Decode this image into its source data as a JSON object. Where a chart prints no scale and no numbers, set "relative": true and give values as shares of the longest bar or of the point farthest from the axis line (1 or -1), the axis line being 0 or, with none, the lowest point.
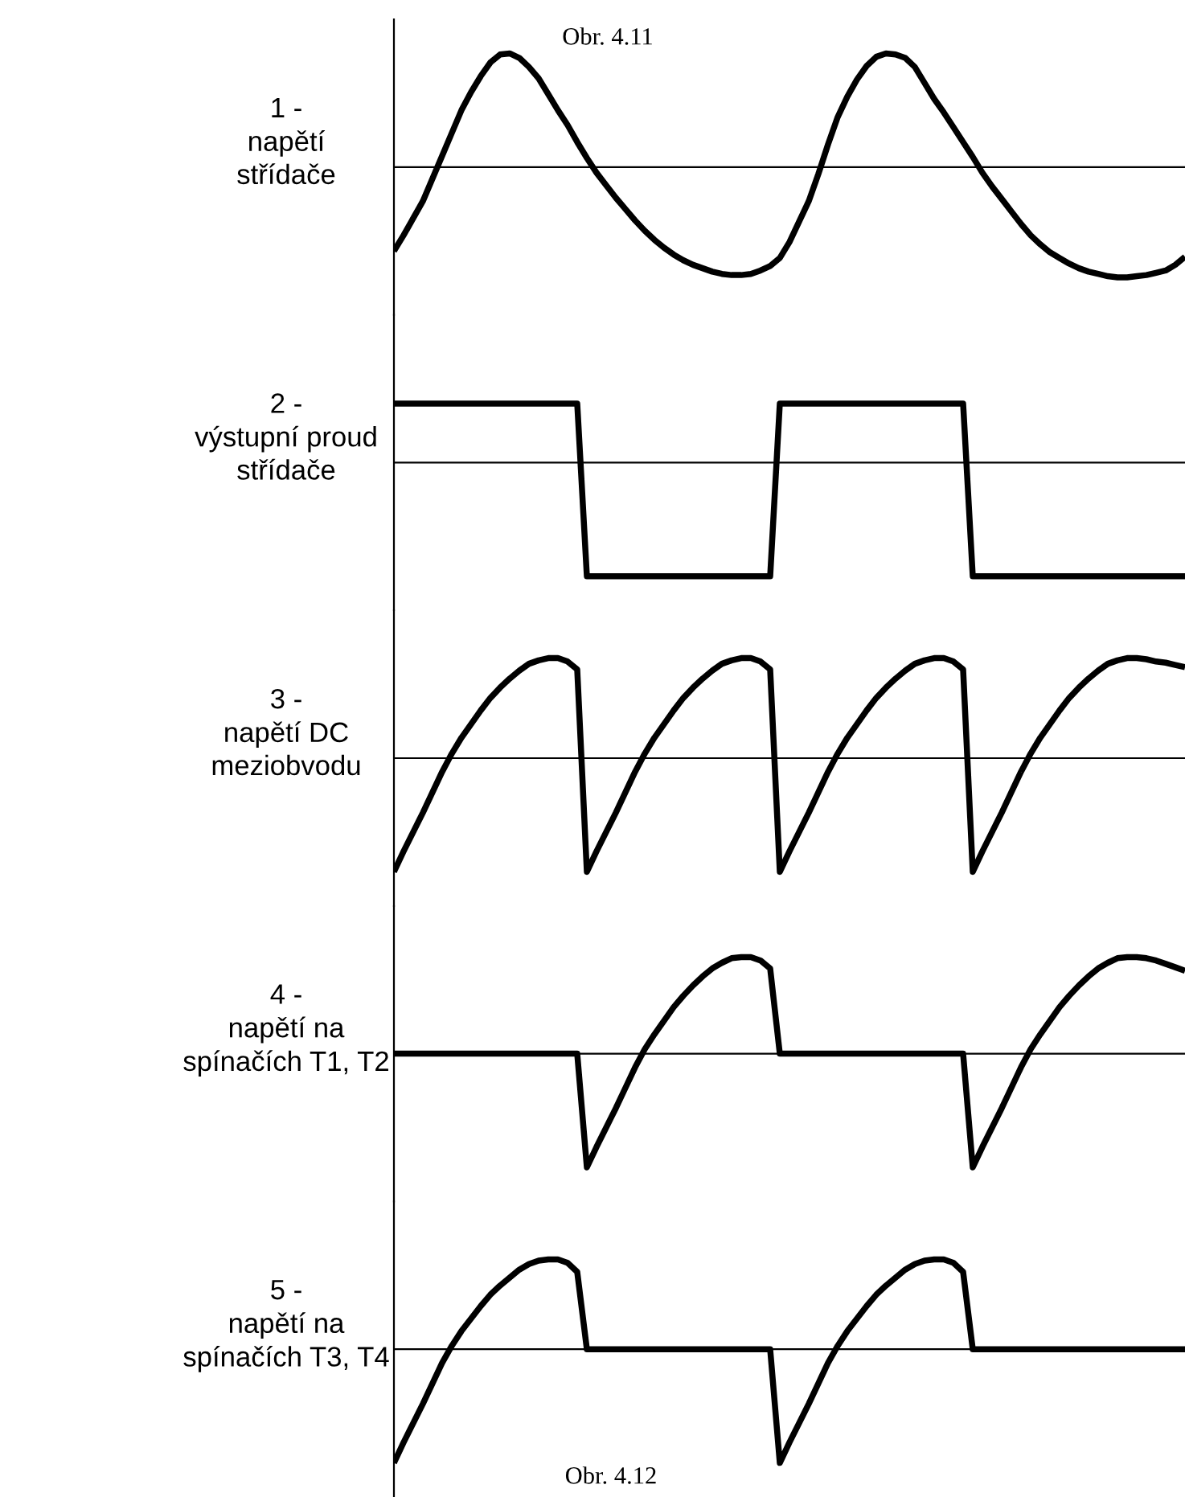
{
  "chart_data": [
    {
      "type": "line",
      "title": "1 -\nnapětí\nstřídače",
      "relative": true,
      "color": "#000000",
      "annotations": [
        "Obr. 4.11"
      ],
      "categories": [
        null,
        null,
        null,
        null,
        null,
        null,
        null,
        null,
        null,
        null,
        null,
        null,
        null,
        null,
        null,
        null,
        null,
        null,
        null,
        null,
        null,
        null,
        null,
        null,
        null,
        null,
        null,
        null,
        null,
        null,
        null,
        null,
        null,
        null,
        null,
        null,
        null,
        null,
        null,
        null,
        null,
        null,
        null,
        null,
        null,
        null,
        null,
        null,
        null,
        null,
        null,
        null,
        null,
        null,
        null,
        null,
        null,
        null,
        null,
        null,
        null,
        null,
        null,
        null,
        null,
        null,
        null,
        null,
        null,
        null,
        null,
        null,
        null,
        null,
        null,
        null,
        null,
        null,
        null,
        null,
        null,
        null,
        null
      ],
      "values": [
        -0.74,
        -0.6,
        -0.45,
        -0.3,
        -0.1,
        0.1,
        0.3,
        0.5,
        0.66,
        0.8,
        0.92,
        0.99,
        1.0,
        0.96,
        0.88,
        0.78,
        0.64,
        0.5,
        0.37,
        0.22,
        0.08,
        -0.05,
        -0.16,
        -0.27,
        -0.37,
        -0.47,
        -0.56,
        -0.64,
        -0.71,
        -0.77,
        -0.82,
        -0.86,
        -0.89,
        -0.92,
        -0.94,
        -0.95,
        -0.95,
        -0.94,
        -0.91,
        -0.87,
        -0.8,
        -0.66,
        -0.48,
        -0.3,
        -0.06,
        0.2,
        0.44,
        0.62,
        0.77,
        0.89,
        0.97,
        1.0,
        0.99,
        0.96,
        0.88,
        0.74,
        0.6,
        0.48,
        0.35,
        0.22,
        0.09,
        -0.05,
        -0.17,
        -0.28,
        -0.39,
        -0.5,
        -0.6,
        -0.68,
        -0.75,
        -0.8,
        -0.85,
        -0.89,
        -0.92,
        -0.94,
        -0.96,
        -0.97,
        -0.97,
        -0.96,
        -0.95,
        -0.93,
        -0.91,
        -0.86,
        -0.79
      ]
    },
    {
      "type": "line",
      "title": "2 -\nvýstupní proud\nstřídače",
      "relative": true,
      "color": "#000000",
      "categories": [
        null,
        null,
        null,
        null,
        null,
        null,
        null,
        null,
        null,
        null,
        null,
        null,
        null,
        null,
        null,
        null,
        null,
        null,
        null,
        null,
        null,
        null,
        null,
        null,
        null,
        null,
        null,
        null,
        null,
        null,
        null,
        null,
        null,
        null,
        null,
        null,
        null,
        null,
        null,
        null,
        null,
        null,
        null,
        null,
        null,
        null,
        null,
        null,
        null,
        null,
        null,
        null,
        null,
        null,
        null,
        null,
        null,
        null,
        null,
        null,
        null,
        null,
        null,
        null,
        null,
        null,
        null,
        null,
        null,
        null,
        null,
        null,
        null,
        null,
        null,
        null,
        null,
        null,
        null,
        null,
        null,
        null,
        null
      ],
      "values": [
        0.52,
        0.52,
        0.52,
        0.52,
        0.52,
        0.52,
        0.52,
        0.52,
        0.52,
        0.52,
        0.52,
        0.52,
        0.52,
        0.52,
        0.52,
        0.52,
        0.52,
        0.52,
        0.52,
        0.52,
        -1,
        -1,
        -1,
        -1,
        -1,
        -1,
        -1,
        -1,
        -1,
        -1,
        -1,
        -1,
        -1,
        -1,
        -1,
        -1,
        -1,
        -1,
        -1,
        -1,
        0.52,
        0.52,
        0.52,
        0.52,
        0.52,
        0.52,
        0.52,
        0.52,
        0.52,
        0.52,
        0.52,
        0.52,
        0.52,
        0.52,
        0.52,
        0.52,
        0.52,
        0.52,
        0.52,
        0.52,
        -1,
        -1,
        -1,
        -1,
        -1,
        -1,
        -1,
        -1,
        -1,
        -1,
        -1,
        -1,
        -1,
        -1,
        -1,
        -1,
        -1,
        -1,
        -1,
        -1,
        -1,
        -1,
        -1
      ]
    },
    {
      "type": "line",
      "title": "3 -\nnapětí DC\nmeziobvodu",
      "relative": true,
      "color": "#000000",
      "categories": [
        null,
        null,
        null,
        null,
        null,
        null,
        null,
        null,
        null,
        null,
        null,
        null,
        null,
        null,
        null,
        null,
        null,
        null,
        null,
        null,
        null,
        null,
        null,
        null,
        null,
        null,
        null,
        null,
        null,
        null,
        null,
        null,
        null,
        null,
        null,
        null,
        null,
        null,
        null,
        null,
        null,
        null,
        null,
        null,
        null,
        null,
        null,
        null,
        null,
        null,
        null,
        null,
        null,
        null,
        null,
        null,
        null,
        null,
        null,
        null,
        null,
        null,
        null,
        null,
        null,
        null,
        null,
        null,
        null,
        null,
        null,
        null,
        null,
        null,
        null,
        null,
        null,
        null,
        null,
        null,
        null,
        null,
        null
      ],
      "values": [
        -1,
        -0.82,
        -0.65,
        -0.48,
        -0.3,
        -0.12,
        0.04,
        0.18,
        0.3,
        0.42,
        0.53,
        0.62,
        0.7,
        0.77,
        0.83,
        0.86,
        0.88,
        0.88,
        0.85,
        0.78,
        -1,
        -0.82,
        -0.65,
        -0.48,
        -0.3,
        -0.12,
        0.04,
        0.18,
        0.3,
        0.42,
        0.53,
        0.62,
        0.7,
        0.77,
        0.83,
        0.86,
        0.88,
        0.88,
        0.85,
        0.78,
        -1,
        -0.82,
        -0.65,
        -0.48,
        -0.3,
        -0.12,
        0.04,
        0.18,
        0.3,
        0.42,
        0.53,
        0.62,
        0.7,
        0.77,
        0.83,
        0.86,
        0.88,
        0.88,
        0.85,
        0.78,
        -1,
        -0.82,
        -0.65,
        -0.48,
        -0.3,
        -0.12,
        0.04,
        0.18,
        0.3,
        0.42,
        0.53,
        0.62,
        0.7,
        0.77,
        0.83,
        0.86,
        0.88,
        0.88,
        0.87,
        0.85,
        0.84,
        0.82,
        0.8
      ]
    },
    {
      "type": "line",
      "title": "4 -\nnapětí na\nspínačích T1, T2",
      "relative": true,
      "color": "#000000",
      "categories": [
        null,
        null,
        null,
        null,
        null,
        null,
        null,
        null,
        null,
        null,
        null,
        null,
        null,
        null,
        null,
        null,
        null,
        null,
        null,
        null,
        null,
        null,
        null,
        null,
        null,
        null,
        null,
        null,
        null,
        null,
        null,
        null,
        null,
        null,
        null,
        null,
        null,
        null,
        null,
        null,
        null,
        null,
        null,
        null,
        null,
        null,
        null,
        null,
        null,
        null,
        null,
        null,
        null,
        null,
        null,
        null,
        null,
        null,
        null,
        null,
        null,
        null,
        null,
        null,
        null,
        null,
        null,
        null,
        null,
        null,
        null,
        null,
        null,
        null,
        null,
        null,
        null,
        null,
        null,
        null,
        null,
        null,
        null
      ],
      "values": [
        0,
        0,
        0,
        0,
        0,
        0,
        0,
        0,
        0,
        0,
        0,
        0,
        0,
        0,
        0,
        0,
        0,
        0,
        0,
        0,
        -1,
        -0.82,
        -0.65,
        -0.48,
        -0.3,
        -0.12,
        0.04,
        0.17,
        0.29,
        0.41,
        0.51,
        0.6,
        0.68,
        0.75,
        0.8,
        0.84,
        0.85,
        0.85,
        0.82,
        0.75,
        0,
        0,
        0,
        0,
        0,
        0,
        0,
        0,
        0,
        0,
        0,
        0,
        0,
        0,
        0,
        0,
        0,
        0,
        0,
        0,
        -1,
        -0.82,
        -0.65,
        -0.48,
        -0.3,
        -0.12,
        0.04,
        0.17,
        0.29,
        0.41,
        0.51,
        0.6,
        0.68,
        0.75,
        0.8,
        0.84,
        0.85,
        0.85,
        0.84,
        0.82,
        0.79,
        0.76,
        0.73
      ]
    },
    {
      "type": "line",
      "title": "5 -\nnapětí na\nspínačích T3, T4",
      "relative": true,
      "color": "#000000",
      "annotations": [
        "Obr. 4.12"
      ],
      "categories": [
        null,
        null,
        null,
        null,
        null,
        null,
        null,
        null,
        null,
        null,
        null,
        null,
        null,
        null,
        null,
        null,
        null,
        null,
        null,
        null,
        null,
        null,
        null,
        null,
        null,
        null,
        null,
        null,
        null,
        null,
        null,
        null,
        null,
        null,
        null,
        null,
        null,
        null,
        null,
        null,
        null,
        null,
        null,
        null,
        null,
        null,
        null,
        null,
        null,
        null,
        null,
        null,
        null,
        null,
        null,
        null,
        null,
        null,
        null,
        null,
        null,
        null,
        null,
        null,
        null,
        null,
        null,
        null,
        null,
        null,
        null,
        null,
        null,
        null,
        null,
        null,
        null,
        null,
        null,
        null,
        null,
        null,
        null
      ],
      "values": [
        -1,
        -0.82,
        -0.65,
        -0.48,
        -0.3,
        -0.12,
        0.03,
        0.16,
        0.27,
        0.38,
        0.48,
        0.56,
        0.63,
        0.7,
        0.75,
        0.78,
        0.79,
        0.79,
        0.76,
        0.68,
        0,
        0,
        0,
        0,
        0,
        0,
        0,
        0,
        0,
        0,
        0,
        0,
        0,
        0,
        0,
        0,
        0,
        0,
        0,
        0,
        -1,
        -0.82,
        -0.65,
        -0.48,
        -0.3,
        -0.12,
        0.03,
        0.16,
        0.27,
        0.38,
        0.48,
        0.56,
        0.63,
        0.7,
        0.75,
        0.78,
        0.79,
        0.79,
        0.76,
        0.68,
        0,
        0,
        0,
        0,
        0,
        0,
        0,
        0,
        0,
        0,
        0,
        0,
        0,
        0,
        0,
        0,
        0,
        0,
        0,
        0,
        0,
        0,
        0
      ]
    }
  ]
}
